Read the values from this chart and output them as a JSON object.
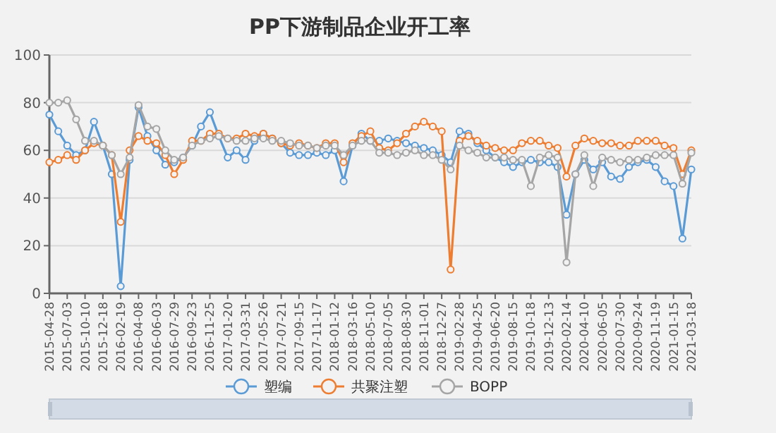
{
  "chart_data": {
    "type": "line",
    "title": "PP下游制品企业开工率",
    "categories": [
      "2015-04-28",
      null,
      "2015-07-03",
      null,
      "2015-10-10",
      null,
      "2015-12-18",
      null,
      "2016-02-19",
      null,
      "2016-04-08",
      null,
      "2016-06-03",
      null,
      "2016-07-29",
      null,
      "2016-09-23",
      null,
      "2016-11-25",
      null,
      "2017-01-20",
      null,
      "2017-03-31",
      null,
      "2017-05-26",
      null,
      "2017-07-21",
      null,
      "2017-09-15",
      null,
      "2017-11-17",
      null,
      "2018-01-12",
      null,
      "2018-03-16",
      null,
      "2018-05-10",
      null,
      "2018-07-05",
      null,
      "2018-08-30",
      null,
      "2018-11-01",
      null,
      "2018-12-27",
      null,
      "2019-02-28",
      null,
      "2019-04-25",
      null,
      "2019-06-20",
      null,
      "2019-08-15",
      null,
      "2019-10-18",
      null,
      "2019-12-13",
      null,
      "2020-02-14",
      null,
      "2020-04-10",
      null,
      "2020-06-05",
      null,
      "2020-07-30",
      null,
      "2020-09-24",
      null,
      "2020-11-19",
      null,
      "2021-01-15",
      null,
      "2021-03-18"
    ],
    "series": [
      {
        "name": "塑编",
        "color": "#5b9bd5",
        "values": [
          75,
          68,
          62,
          58,
          60,
          72,
          62,
          50,
          3,
          56,
          78,
          66,
          60,
          54,
          55,
          57,
          62,
          70,
          76,
          66,
          57,
          60,
          56,
          64,
          67,
          65,
          63,
          59,
          58,
          58,
          59,
          58,
          60,
          47,
          62,
          67,
          64,
          64,
          65,
          64,
          63,
          62,
          61,
          60,
          58,
          55,
          68,
          67,
          63,
          60,
          57,
          55,
          53,
          55,
          56,
          55,
          55,
          53,
          33,
          50,
          56,
          52,
          55,
          49,
          48,
          53,
          55,
          56,
          53,
          47,
          45,
          23,
          52
        ]
      },
      {
        "name": "共聚注塑",
        "color": "#ed7d31",
        "values": [
          55,
          56,
          58,
          56,
          60,
          63,
          62,
          58,
          30,
          60,
          66,
          64,
          63,
          58,
          50,
          56,
          64,
          64,
          67,
          67,
          65,
          65,
          67,
          66,
          67,
          65,
          63,
          62,
          63,
          62,
          61,
          63,
          63,
          55,
          63,
          66,
          68,
          61,
          60,
          63,
          67,
          70,
          72,
          70,
          68,
          10,
          64,
          66,
          64,
          62,
          61,
          60,
          60,
          63,
          64,
          64,
          62,
          61,
          49,
          62,
          65,
          64,
          63,
          63,
          62,
          62,
          64,
          64,
          64,
          62,
          61,
          50,
          60
        ]
      },
      {
        "name": "BOPP",
        "color": "#a5a5a5",
        "values": [
          80,
          80,
          81,
          73,
          64,
          64,
          62,
          58,
          50,
          57,
          79,
          70,
          69,
          60,
          56,
          57,
          62,
          64,
          65,
          66,
          65,
          64,
          64,
          65,
          65,
          64,
          64,
          63,
          62,
          62,
          61,
          62,
          62,
          58,
          62,
          64,
          64,
          59,
          59,
          58,
          59,
          60,
          58,
          58,
          56,
          52,
          62,
          60,
          59,
          57,
          57,
          57,
          56,
          56,
          45,
          57,
          58,
          57,
          13,
          50,
          58,
          45,
          57,
          56,
          55,
          56,
          56,
          57,
          58,
          58,
          58,
          46,
          59
        ]
      }
    ],
    "ylim": [
      0,
      100
    ],
    "yticks": [
      0,
      20,
      40,
      60,
      80,
      100
    ],
    "grid": "y",
    "legend": "bottom",
    "marker": "circle",
    "line_style": "solid"
  }
}
